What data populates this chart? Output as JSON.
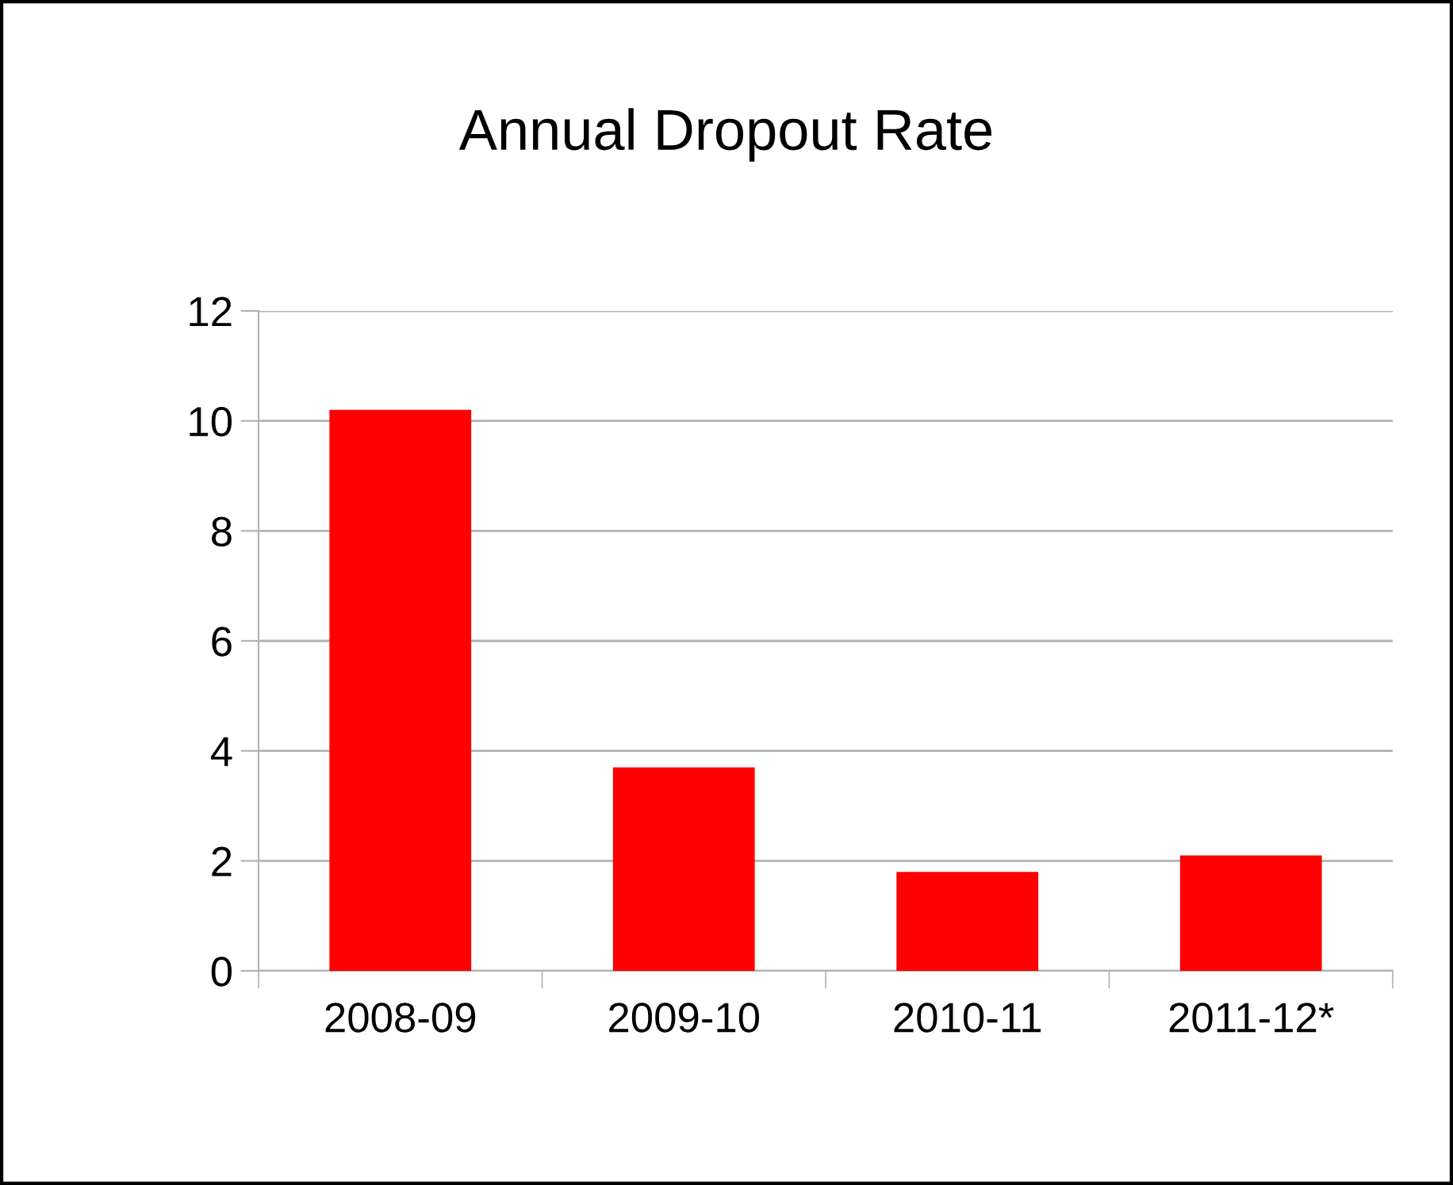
{
  "chart_data": {
    "type": "bar",
    "title": "Annual Dropout Rate",
    "categories": [
      "2008-09",
      "2009-10",
      "2010-11",
      "2011-12*"
    ],
    "values": [
      10.2,
      3.7,
      1.8,
      2.1
    ],
    "color": "#ff0000",
    "ylim": [
      0,
      12
    ],
    "yticks": [
      0,
      2,
      4,
      6,
      8,
      10,
      12
    ],
    "grid": "y",
    "legend": false
  }
}
